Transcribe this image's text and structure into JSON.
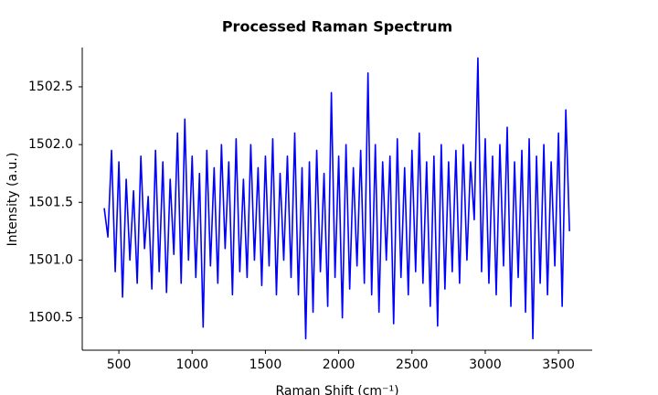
{
  "chart_data": {
    "type": "line",
    "title": "Processed Raman Spectrum",
    "x_label": "Raman Shift (cm⁻¹)",
    "y_label": "Intensity (a.u.)",
    "color": "#0000ff",
    "x": [
      400,
      425,
      450,
      475,
      500,
      525,
      550,
      575,
      600,
      625,
      650,
      675,
      700,
      725,
      750,
      775,
      800,
      825,
      850,
      875,
      900,
      925,
      950,
      975,
      1000,
      1025,
      1050,
      1075,
      1100,
      1125,
      1150,
      1175,
      1200,
      1225,
      1250,
      1275,
      1300,
      1325,
      1350,
      1375,
      1400,
      1425,
      1450,
      1475,
      1500,
      1525,
      1550,
      1575,
      1600,
      1625,
      1650,
      1675,
      1700,
      1725,
      1750,
      1775,
      1800,
      1825,
      1850,
      1875,
      1900,
      1925,
      1950,
      1975,
      2000,
      2025,
      2050,
      2075,
      2100,
      2125,
      2150,
      2175,
      2200,
      2225,
      2250,
      2275,
      2300,
      2325,
      2350,
      2375,
      2400,
      2425,
      2450,
      2475,
      2500,
      2525,
      2550,
      2575,
      2600,
      2625,
      2650,
      2675,
      2700,
      2725,
      2750,
      2775,
      2800,
      2825,
      2850,
      2875,
      2900,
      2925,
      2950,
      2975,
      3000,
      3025,
      3050,
      3075,
      3100,
      3125,
      3150,
      3175,
      3200,
      3225,
      3250,
      3275,
      3300,
      3325,
      3350,
      3375,
      3400,
      3425,
      3450,
      3475,
      3500,
      3525,
      3550,
      3575
    ],
    "values": [
      1501.45,
      1501.2,
      1501.95,
      1500.9,
      1501.85,
      1500.68,
      1501.7,
      1501.0,
      1501.6,
      1500.8,
      1501.9,
      1501.1,
      1501.55,
      1500.75,
      1501.95,
      1500.9,
      1501.85,
      1500.72,
      1501.7,
      1501.05,
      1502.1,
      1500.8,
      1502.22,
      1501.0,
      1501.9,
      1500.85,
      1501.75,
      1500.42,
      1501.95,
      1500.95,
      1501.8,
      1500.8,
      1502.0,
      1501.1,
      1501.85,
      1500.7,
      1502.05,
      1500.9,
      1501.7,
      1500.85,
      1502.0,
      1501.0,
      1501.8,
      1500.78,
      1501.9,
      1500.95,
      1502.05,
      1500.7,
      1501.75,
      1501.0,
      1501.9,
      1500.85,
      1502.1,
      1500.7,
      1501.8,
      1500.32,
      1501.85,
      1500.55,
      1501.95,
      1500.9,
      1501.75,
      1500.6,
      1502.45,
      1500.85,
      1501.9,
      1500.5,
      1502.0,
      1500.75,
      1501.8,
      1500.95,
      1501.95,
      1500.8,
      1502.62,
      1500.7,
      1502.0,
      1500.55,
      1501.85,
      1501.0,
      1501.9,
      1500.45,
      1502.05,
      1500.85,
      1501.8,
      1500.7,
      1501.95,
      1500.9,
      1502.1,
      1500.8,
      1501.85,
      1500.6,
      1501.9,
      1500.43,
      1502.0,
      1500.75,
      1501.85,
      1500.9,
      1501.95,
      1500.8,
      1502.0,
      1501.0,
      1501.85,
      1501.35,
      1502.75,
      1500.9,
      1502.05,
      1500.8,
      1501.9,
      1500.7,
      1502.0,
      1500.95,
      1502.15,
      1500.6,
      1501.85,
      1500.85,
      1501.95,
      1500.55,
      1502.05,
      1500.32,
      1501.9,
      1500.8,
      1502.0,
      1500.7,
      1501.85,
      1500.95,
      1502.1,
      1500.6,
      1502.3,
      1501.25
    ],
    "xlim": [
      250,
      3730
    ],
    "ylim": [
      1500.22,
      1502.84
    ],
    "xticks": [
      500,
      1000,
      1500,
      2000,
      2500,
      3000,
      3500
    ],
    "yticks": [
      1500.5,
      {
        "value": 1501.0,
        "label": "1501.0"
      },
      1501.5,
      {
        "value": 1502.0,
        "label": "1502.0"
      },
      1502.5
    ],
    "grid": false
  }
}
